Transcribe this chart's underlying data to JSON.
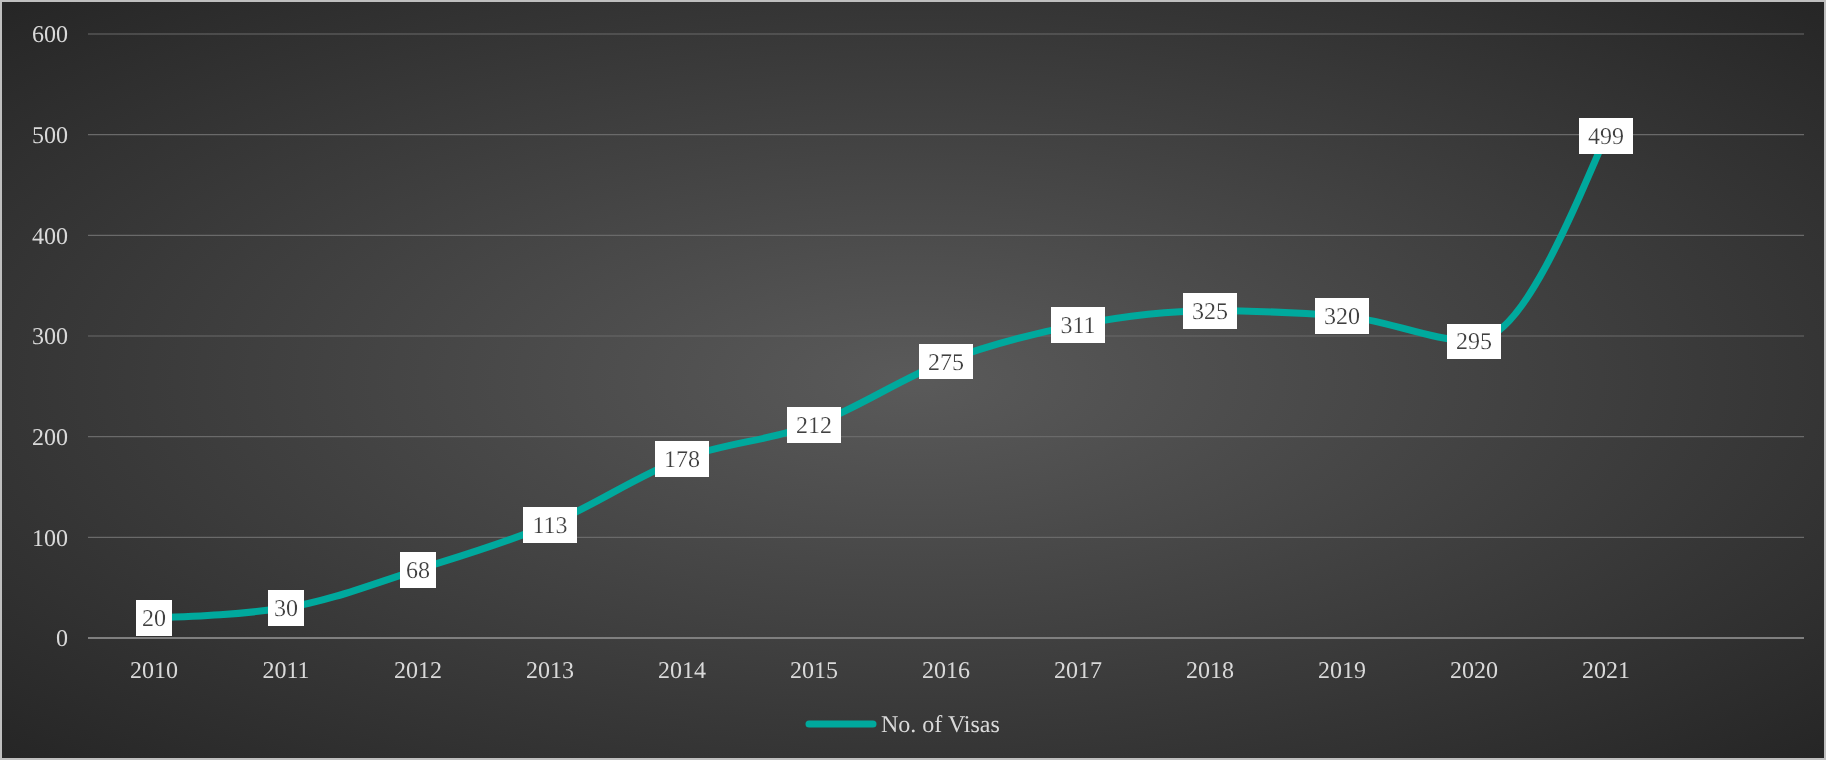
{
  "chart_data": {
    "type": "line",
    "categories": [
      "2010",
      "2011",
      "2012",
      "2013",
      "2014",
      "2015",
      "2016",
      "2017",
      "2018",
      "2019",
      "2020",
      "2021",
      null
    ],
    "series": [
      {
        "name": "No. of Visas",
        "color": "#00a99d",
        "values": [
          20,
          30,
          68,
          113,
          178,
          212,
          275,
          311,
          325,
          320,
          295,
          499,
          null
        ]
      }
    ],
    "ylim": [
      0,
      600
    ],
    "yticks": [
      0,
      100,
      200,
      300,
      400,
      500,
      600
    ],
    "grid": "y",
    "data_labels": true,
    "legend": "bottom",
    "line_style": "solid"
  }
}
